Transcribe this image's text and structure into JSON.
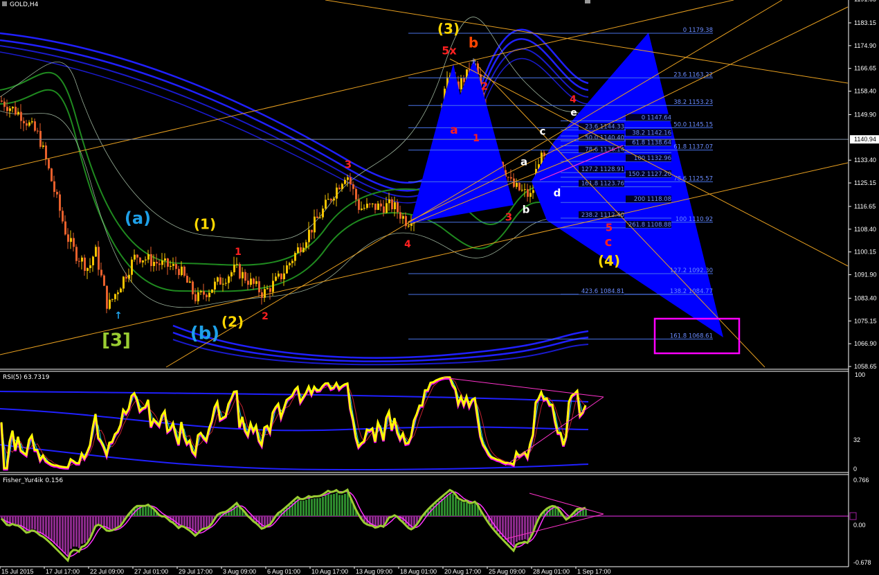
{
  "window": {
    "title": "GOLD,H4"
  },
  "price_axis": {
    "ticks": [
      "1191.65",
      "1183.15",
      "1174.90",
      "1166.65",
      "1158.40",
      "1149.90",
      "1133.40",
      "1125.15",
      "1116.65",
      "1108.40",
      "1100.15",
      "1091.90",
      "1083.40",
      "1075.15",
      "1066.90",
      "1058.65"
    ],
    "current": "1140.94"
  },
  "time_axis": [
    {
      "label": "15 Jul 2015",
      "t": "2015-07-15T00:00"
    },
    {
      "label": "17 Jul 17:00",
      "t": "2015-07-17T17:00"
    },
    {
      "label": "22 Jul 09:00",
      "t": "2015-07-22T09:00"
    },
    {
      "label": "27 Jul 01:00",
      "t": "2015-07-27T01:00"
    },
    {
      "label": "29 Jul 17:00",
      "t": "2015-07-29T17:00"
    },
    {
      "label": "3 Aug 09:00",
      "t": "2015-08-03T09:00"
    },
    {
      "label": "6 Aug 01:00",
      "t": "2015-08-06T01:00"
    },
    {
      "label": "10 Aug 17:00",
      "t": "2015-08-10T17:00"
    },
    {
      "label": "13 Aug 09:00",
      "t": "2015-08-13T09:00"
    },
    {
      "label": "18 Aug 01:00",
      "t": "2015-08-18T01:00"
    },
    {
      "label": "20 Aug 17:00",
      "t": "2015-08-20T17:00"
    },
    {
      "label": "25 Aug 09:00",
      "t": "2015-08-25T09:00"
    },
    {
      "label": "28 Aug 01:00",
      "t": "2015-08-28T01:00"
    },
    {
      "label": "1 Sep 17:00",
      "t": "2015-09-01T17:00"
    }
  ],
  "chart_data": {
    "type": "candlestick",
    "symbol": "GOLD",
    "timeframe": "H4",
    "ylim": [
      1058.65,
      1191.65
    ],
    "last_price": 1140.94,
    "price_pivots": [
      {
        "t": "2015-07-15T00:00",
        "p": 1155
      },
      {
        "t": "2015-07-16T06:00",
        "p": 1150
      },
      {
        "t": "2015-07-17T09:00",
        "p": 1142
      },
      {
        "t": "2015-07-17T21:00",
        "p": 1133
      },
      {
        "t": "2015-07-20T01:00",
        "p": 1106
      },
      {
        "t": "2015-07-20T21:00",
        "p": 1100
      },
      {
        "t": "2015-07-22T09:00",
        "p": 1094
      },
      {
        "t": "2015-07-23T01:00",
        "p": 1101
      },
      {
        "t": "2015-07-24T09:00",
        "p": 1080
      },
      {
        "t": "2015-07-27T05:00",
        "p": 1099
      },
      {
        "t": "2015-07-28T13:00",
        "p": 1096
      },
      {
        "t": "2015-07-29T21:00",
        "p": 1094
      },
      {
        "t": "2015-07-31T17:00",
        "p": 1083
      },
      {
        "t": "2015-08-04T05:00",
        "p": 1094
      },
      {
        "t": "2015-08-05T21:00",
        "p": 1085
      },
      {
        "t": "2015-08-07T13:00",
        "p": 1091
      },
      {
        "t": "2015-08-11T13:00",
        "p": 1116
      },
      {
        "t": "2015-08-12T21:00",
        "p": 1129
      },
      {
        "t": "2015-08-13T21:00",
        "p": 1116
      },
      {
        "t": "2015-08-17T09:00",
        "p": 1117
      },
      {
        "t": "2015-08-18T13:00",
        "p": 1111
      },
      {
        "t": "2015-08-19T13:00",
        "p": 1119
      },
      {
        "t": "2015-08-20T01:00",
        "p": 1132
      },
      {
        "t": "2015-08-21T09:00",
        "p": 1167
      },
      {
        "t": "2015-08-21T21:00",
        "p": 1159
      },
      {
        "t": "2015-08-24T05:00",
        "p": 1168
      },
      {
        "t": "2015-08-24T17:00",
        "p": 1155
      },
      {
        "t": "2015-08-25T13:00",
        "p": 1141
      },
      {
        "t": "2015-08-26T21:00",
        "p": 1124
      },
      {
        "t": "2015-08-28T01:00",
        "p": 1120
      },
      {
        "t": "2015-08-28T17:00",
        "p": 1134
      },
      {
        "t": "2015-08-31T05:00",
        "p": 1132
      },
      {
        "t": "2015-08-31T13:00",
        "p": 1128
      },
      {
        "t": "2015-09-01T17:00",
        "p": 1146
      },
      {
        "t": "2015-09-02T05:00",
        "p": 1140.94
      }
    ]
  },
  "fib_main": [
    {
      "label": "0 1179.38",
      "price": 1179.38
    },
    {
      "label": "23.6 1163.22",
      "price": 1163.22
    },
    {
      "label": "38.2 1153.23",
      "price": 1153.23
    },
    {
      "label": "50.0 1145.15",
      "price": 1145.15
    },
    {
      "label": "61.8 1137.07",
      "price": 1137.07
    },
    {
      "label": "78.6 1125.57",
      "price": 1125.57
    },
    {
      "label": "100 1110.92",
      "price": 1110.92
    },
    {
      "label": "127.2 1092.30",
      "price": 1092.3
    },
    {
      "label": "138.2 1084.77",
      "price": 1084.77
    },
    {
      "label": "161.8 1068.61",
      "price": 1068.61
    }
  ],
  "fib_secondary": [
    {
      "label": "0 1147.64",
      "price": 1147.64
    },
    {
      "label": "23.6 1144.33",
      "price": 1144.33
    },
    {
      "label": "38.2 1142.16",
      "price": 1142.16
    },
    {
      "label": "50.0 1140.40",
      "price": 1140.4
    },
    {
      "label": "61.8 1138.64",
      "price": 1138.64
    },
    {
      "label": "78.6 1136.14",
      "price": 1136.14
    },
    {
      "label": "100 1132.96",
      "price": 1132.96
    },
    {
      "label": "127.2 1128.91",
      "price": 1128.91
    },
    {
      "label": "150.2 1127.20",
      "price": 1127.2
    },
    {
      "label": "161.8 1123.76",
      "price": 1123.76
    },
    {
      "label": "200 1118.08",
      "price": 1118.08
    },
    {
      "label": "238.2 1112.40",
      "price": 1112.4
    },
    {
      "label": "261.8 1108.88",
      "price": 1108.88
    },
    {
      "label": "423.6 1084.81",
      "price": 1084.81
    }
  ],
  "wave_labels": [
    {
      "text": "(3)",
      "color": "#ffd700"
    },
    {
      "text": "b",
      "color": "#ff4500"
    },
    {
      "text": "5x",
      "color": "#ff2020"
    },
    {
      "text": "2",
      "color": "#ff2020"
    },
    {
      "text": "a",
      "color": "#ff2020"
    },
    {
      "text": "1",
      "color": "#ff2020"
    },
    {
      "text": "4",
      "color": "#ff2020"
    },
    {
      "text": "e",
      "color": "#ffffff"
    },
    {
      "text": "c",
      "color": "#ffffff"
    },
    {
      "text": "a",
      "color": "#ffffff"
    },
    {
      "text": "b",
      "color": "#ffffff"
    },
    {
      "text": "d",
      "color": "#ffffff"
    },
    {
      "text": "3",
      "color": "#ff2020"
    },
    {
      "text": "5",
      "color": "#ff2020"
    },
    {
      "text": "c",
      "color": "#ff2020"
    },
    {
      "text": "(4)",
      "color": "#ffd700"
    },
    {
      "text": "3",
      "color": "#ff2020"
    },
    {
      "text": "4",
      "color": "#ff2020"
    },
    {
      "text": "1",
      "color": "#ff2020"
    },
    {
      "text": "2",
      "color": "#ff2020"
    },
    {
      "text": "(a)",
      "color": "#1ea0e8"
    },
    {
      "text": "(1)",
      "color": "#ffd700"
    },
    {
      "text": "(b)",
      "color": "#1ea0e8"
    },
    {
      "text": "(2)",
      "color": "#ffd700"
    },
    {
      "text": "[3]",
      "color": "#9acd32"
    }
  ],
  "rsi": {
    "label": "RSI(5) 63.7319",
    "ticks": [
      "100",
      "32",
      "0"
    ]
  },
  "fisher": {
    "label": "Fisher_Yur4ik 0.156",
    "ticks": [
      "0.766",
      "0.00",
      "-0.678"
    ]
  },
  "colors": {
    "background": "#000000",
    "bull_candle": "#f5c400",
    "bear_candle": "#e8602c",
    "fib": "#4a74e8",
    "pattern_fill": "#0000ff",
    "trendline": "#e8a020",
    "target_box": "#ff00ff",
    "ma_band": "#1a1aff",
    "envelope": "#1f8a1f",
    "rsi": "#ffff00",
    "fisher_pos": "#2e8b2e",
    "fisher_neg": "#8b2a8b"
  }
}
